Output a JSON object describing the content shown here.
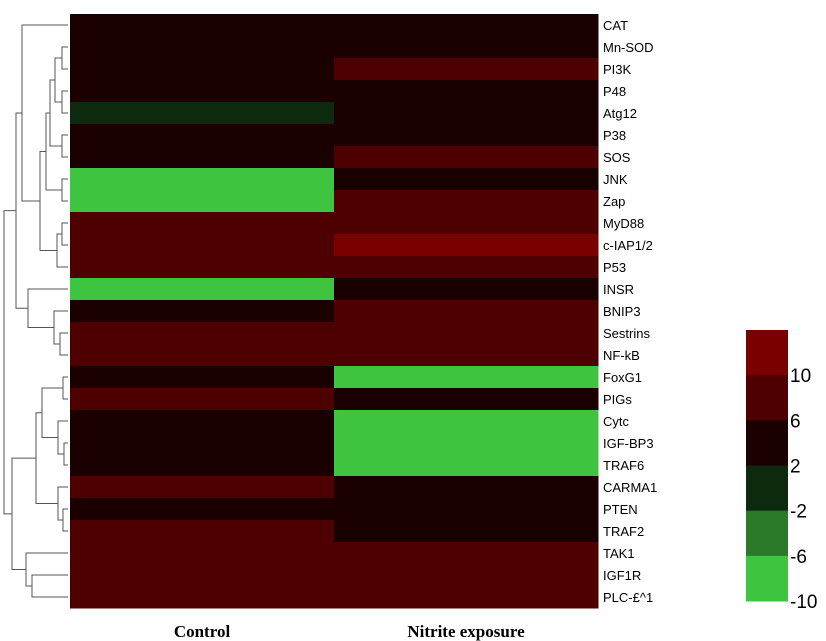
{
  "chart_data": {
    "type": "heatmap",
    "columns": [
      "Control",
      "Nitrite exposure"
    ],
    "rows": [
      "CAT",
      "Mn-SOD",
      "PI3K",
      "P48",
      "Atg12",
      "P38",
      "SOS",
      "JNK",
      "Zap",
      "MyD88",
      "c-IAP1/2",
      "P53",
      "INSR",
      "BNIP3",
      "Sestrins",
      "NF-kB",
      "FoxG1",
      "PIGs",
      "Cytc",
      "IGF-BP3",
      "TRAF6",
      "CARMA1",
      "PTEN",
      "TRAF2",
      "TAK1",
      "IGF1R",
      "PLC-£^1"
    ],
    "values": [
      [
        3,
        3
      ],
      [
        3,
        3
      ],
      [
        3,
        7
      ],
      [
        3,
        3
      ],
      [
        0,
        3
      ],
      [
        3,
        3
      ],
      [
        3,
        7
      ],
      [
        -10,
        3
      ],
      [
        -10,
        7
      ],
      [
        7,
        7
      ],
      [
        7,
        10
      ],
      [
        7,
        7
      ],
      [
        -10,
        3
      ],
      [
        3,
        7
      ],
      [
        7,
        7
      ],
      [
        7,
        7
      ],
      [
        3,
        -10
      ],
      [
        7,
        3
      ],
      [
        3,
        -10
      ],
      [
        3,
        -10
      ],
      [
        3,
        -10
      ],
      [
        7,
        3
      ],
      [
        3,
        3
      ],
      [
        7,
        3
      ],
      [
        7,
        7
      ],
      [
        7,
        7
      ],
      [
        7,
        7
      ]
    ],
    "colorbar": {
      "ticks": [
        "10",
        "6",
        "2",
        "-2",
        "-6",
        "-10"
      ],
      "colors": [
        "#7a0000",
        "#4e0000",
        "#1b0000",
        "#0d2a0e",
        "#2a7a2a",
        "#3ec43e"
      ]
    },
    "legend_position": "right"
  }
}
